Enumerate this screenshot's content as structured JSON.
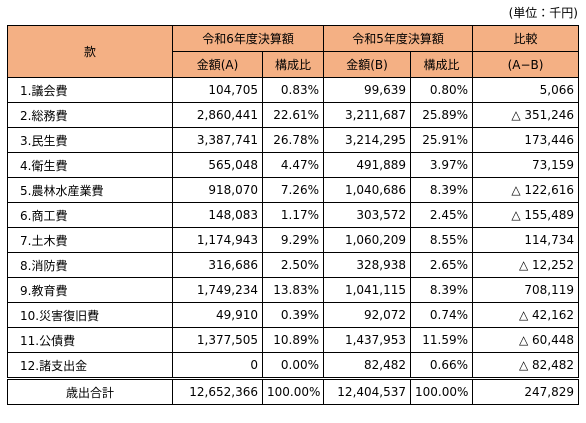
{
  "unit": "(単位：千円)",
  "header": {
    "item": "款",
    "current": "令和6年度決算額",
    "previous": "令和5年度決算額",
    "compare": "比較",
    "amount_a": "金額(A)",
    "ratio_a": "構成比",
    "amount_b": "金額(B)",
    "ratio_b": "構成比",
    "formula": "(A−B)"
  },
  "rows": [
    [
      "1.議会費",
      "104,705",
      "0.83%",
      "99,639",
      "0.80%",
      "5,066"
    ],
    [
      "2.総務費",
      "2,860,441",
      "22.61%",
      "3,211,687",
      "25.89%",
      "△ 351,246"
    ],
    [
      "3.民生費",
      "3,387,741",
      "26.78%",
      "3,214,295",
      "25.91%",
      "173,446"
    ],
    [
      "4.衛生費",
      "565,048",
      "4.47%",
      "491,889",
      "3.97%",
      "73,159"
    ],
    [
      "5.農林水産業費",
      "918,070",
      "7.26%",
      "1,040,686",
      "8.39%",
      "△ 122,616"
    ],
    [
      "6.商工費",
      "148,083",
      "1.17%",
      "303,572",
      "2.45%",
      "△ 155,489"
    ],
    [
      "7.土木費",
      "1,174,943",
      "9.29%",
      "1,060,209",
      "8.55%",
      "114,734"
    ],
    [
      "8.消防費",
      "316,686",
      "2.50%",
      "328,938",
      "2.65%",
      "△ 12,252"
    ],
    [
      "9.教育費",
      "1,749,234",
      "13.83%",
      "1,041,115",
      "8.39%",
      "708,119"
    ],
    [
      "10.災害復旧費",
      "49,910",
      "0.39%",
      "92,072",
      "0.74%",
      "△ 42,162"
    ],
    [
      "11.公債費",
      "1,377,505",
      "10.89%",
      "1,437,953",
      "11.59%",
      "△ 60,448"
    ],
    [
      "12.諸支出金",
      "0",
      "0.00%",
      "82,482",
      "0.66%",
      "△ 82,482"
    ]
  ],
  "total": [
    "歳出合計",
    "12,652,366",
    "100.00%",
    "12,404,537",
    "100.00%",
    "247,829"
  ]
}
